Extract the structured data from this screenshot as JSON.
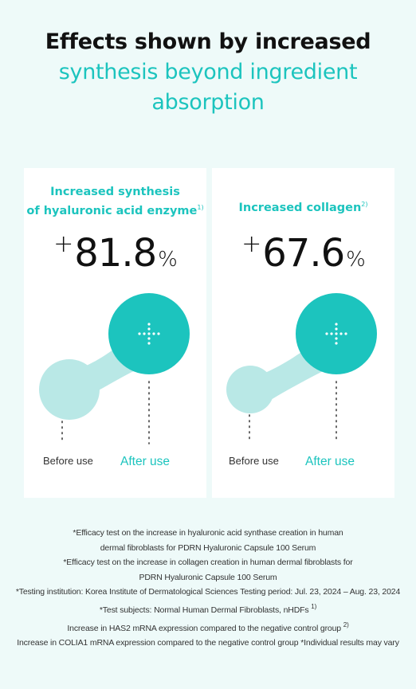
{
  "headline": {
    "line1": "Effects shown by increased",
    "line2": "synthesis beyond ingredient",
    "line3": "absorption"
  },
  "cards": [
    {
      "title_line1": "Increased synthesis",
      "title_line2": "of hyaluronic acid enzyme",
      "footnote_ref": "1)",
      "plus": "+",
      "value": "81.8",
      "unit": "%",
      "before_label": "Before use",
      "after_label": "After use"
    },
    {
      "title_line1": "Increased collagen",
      "footnote_ref": "2)",
      "plus": "+",
      "value": "67.6",
      "unit": "%",
      "before_label": "Before use",
      "after_label": "After use"
    }
  ],
  "notes": {
    "n1": "*Efficacy test on the increase in hyaluronic acid synthase creation in human",
    "n2": "dermal fibroblasts for PDRN Hyaluronic Capsule 100 Serum",
    "n3": "*Efficacy test on the increase in collagen creation in human dermal fibroblasts for",
    "n4": "PDRN Hyaluronic Capsule 100 Serum",
    "n5": "*Testing institution: Korea Institute of Dermatological Sciences Testing period: Jul. 23, 2024 – Aug. 23, 2024",
    "n6": "*Test subjects: Normal Human Dermal Fibroblasts, nHDFs",
    "n6_ref": "1)",
    "n7": "Increase in HAS2 mRNA expression compared to the negative control group",
    "n7_ref": "2)",
    "n8": "Increase in COLIA1 mRNA expression compared to the negative control group *Individual results may vary"
  },
  "colors": {
    "accent": "#1cc4be",
    "accent_light": "#b9e8e6",
    "background": "#eefaf9",
    "card": "#ffffff"
  }
}
